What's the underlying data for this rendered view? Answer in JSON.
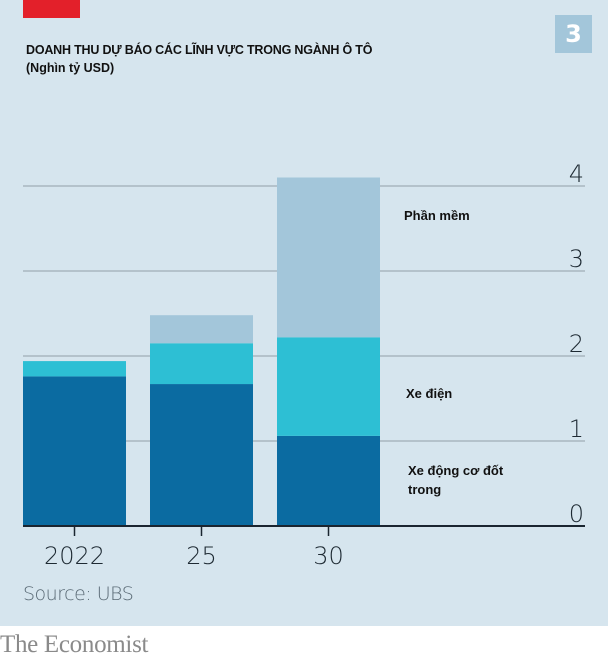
{
  "badge": "3",
  "source": "Source: UBS",
  "brand": "The Economist",
  "colors": {
    "background": "#d6e5ee",
    "accent_red": "#e3202a",
    "combustion": "#0b6ba1",
    "electric": "#2dbfd4",
    "software": "#a3c6da",
    "grid": "#a9b6bf",
    "axis": "#1a2530"
  },
  "chart_data": {
    "type": "bar",
    "stacked": true,
    "title": "DOANH THU DỰ BÁO CÁC LĨNH VỰC TRONG NGÀNH Ô TÔ",
    "subtitle": "(Nghìn tỷ USD)",
    "xlabel": "",
    "ylabel": "",
    "categories": [
      "2022",
      "25",
      "30"
    ],
    "series": [
      {
        "name": "Xe động cơ đốt trong",
        "color": "#0b6ba1",
        "values": [
          1.76,
          1.67,
          1.06
        ]
      },
      {
        "name": "Xe điện",
        "color": "#2dbfd4",
        "values": [
          0.18,
          0.48,
          1.16
        ]
      },
      {
        "name": "Phần mềm",
        "color": "#a3c6da",
        "values": [
          0.0,
          0.33,
          1.88
        ]
      }
    ],
    "ylim": [
      0,
      4
    ],
    "yticks": [
      "0",
      "1",
      "2",
      "3",
      "4"
    ],
    "ytick_side": "right",
    "grid": true,
    "legend": "inline-right"
  }
}
